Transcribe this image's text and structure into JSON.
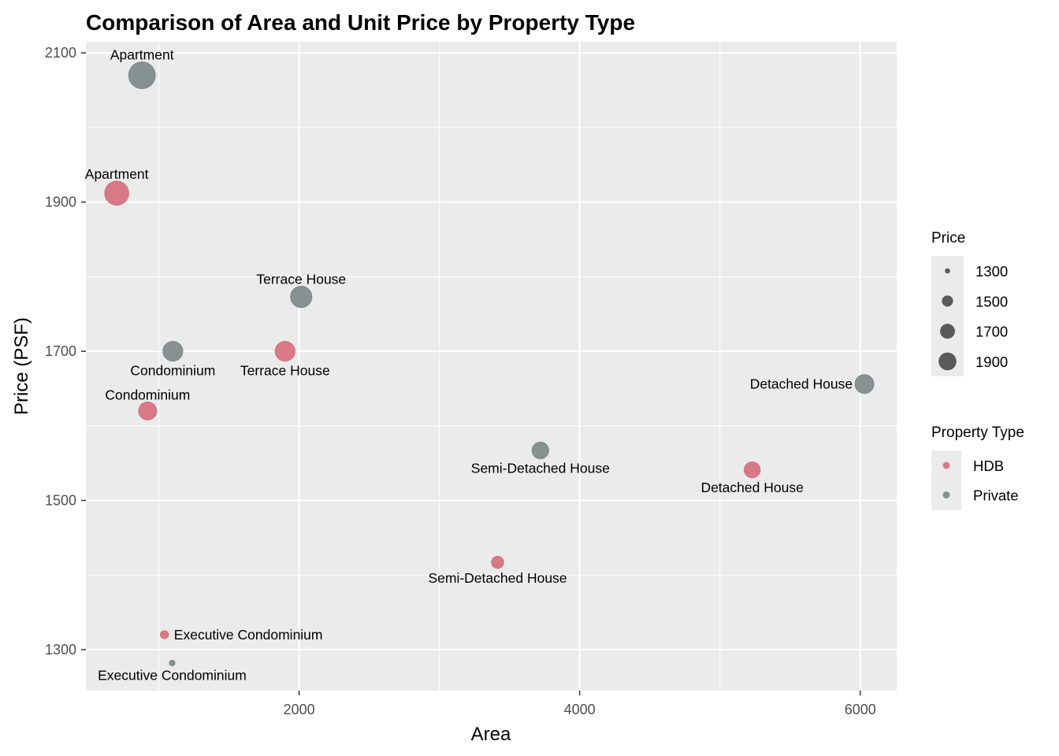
{
  "chart_data": {
    "type": "scatter",
    "title": "Comparison of Area and Unit Price by Property Type",
    "xlabel": "Area",
    "ylabel": "Price (PSF)",
    "xlim": [
      480,
      6260
    ],
    "ylim": [
      1245,
      2115
    ],
    "x_ticks": [
      2000,
      4000,
      6000
    ],
    "y_ticks": [
      1300,
      1500,
      1700,
      1900,
      2100
    ],
    "grid": true,
    "colors": {
      "HDB": "#d6707d",
      "Private": "#7d8a8a"
    },
    "size_legend": {
      "title": "Price",
      "values": [
        1300,
        1500,
        1700,
        1900
      ],
      "labels": [
        "1300",
        "1500",
        "1700",
        "1900"
      ]
    },
    "color_legend": {
      "title": "Property Type",
      "labels": [
        "HDB",
        "Private"
      ]
    },
    "points": [
      {
        "label": "Apartment",
        "group": "Private",
        "x": 880,
        "y": 2070,
        "size": 2070,
        "label_pos": "top"
      },
      {
        "label": "Apartment",
        "group": "HDB",
        "x": 700,
        "y": 1912,
        "size": 1912,
        "label_pos": "top"
      },
      {
        "label": "Terrace House",
        "group": "Private",
        "x": 2015,
        "y": 1773,
        "size": 1773,
        "label_pos": "top"
      },
      {
        "label": "Condominium",
        "group": "Private",
        "x": 1100,
        "y": 1700,
        "size": 1700,
        "label_pos": "bottom"
      },
      {
        "label": "Terrace House",
        "group": "HDB",
        "x": 1900,
        "y": 1700,
        "size": 1700,
        "label_pos": "bottom"
      },
      {
        "label": "Condominium",
        "group": "HDB",
        "x": 920,
        "y": 1620,
        "size": 1620,
        "label_pos": "top"
      },
      {
        "label": "Detached House",
        "group": "Private",
        "x": 6030,
        "y": 1656,
        "size": 1656,
        "label_pos": "left"
      },
      {
        "label": "Semi-Detached House",
        "group": "Private",
        "x": 3720,
        "y": 1567,
        "size": 1567,
        "label_pos": "bottom"
      },
      {
        "label": "Detached House",
        "group": "HDB",
        "x": 5230,
        "y": 1541,
        "size": 1541,
        "label_pos": "bottom"
      },
      {
        "label": "Semi-Detached House",
        "group": "HDB",
        "x": 3415,
        "y": 1417,
        "size": 1417,
        "label_pos": "bottom"
      },
      {
        "label": "Executive Condominium",
        "group": "HDB",
        "x": 1040,
        "y": 1320,
        "size": 1320,
        "label_pos": "right"
      },
      {
        "label": "Executive Condominium",
        "group": "Private",
        "x": 1095,
        "y": 1282,
        "size": 1282,
        "label_pos": "bottom"
      }
    ]
  }
}
